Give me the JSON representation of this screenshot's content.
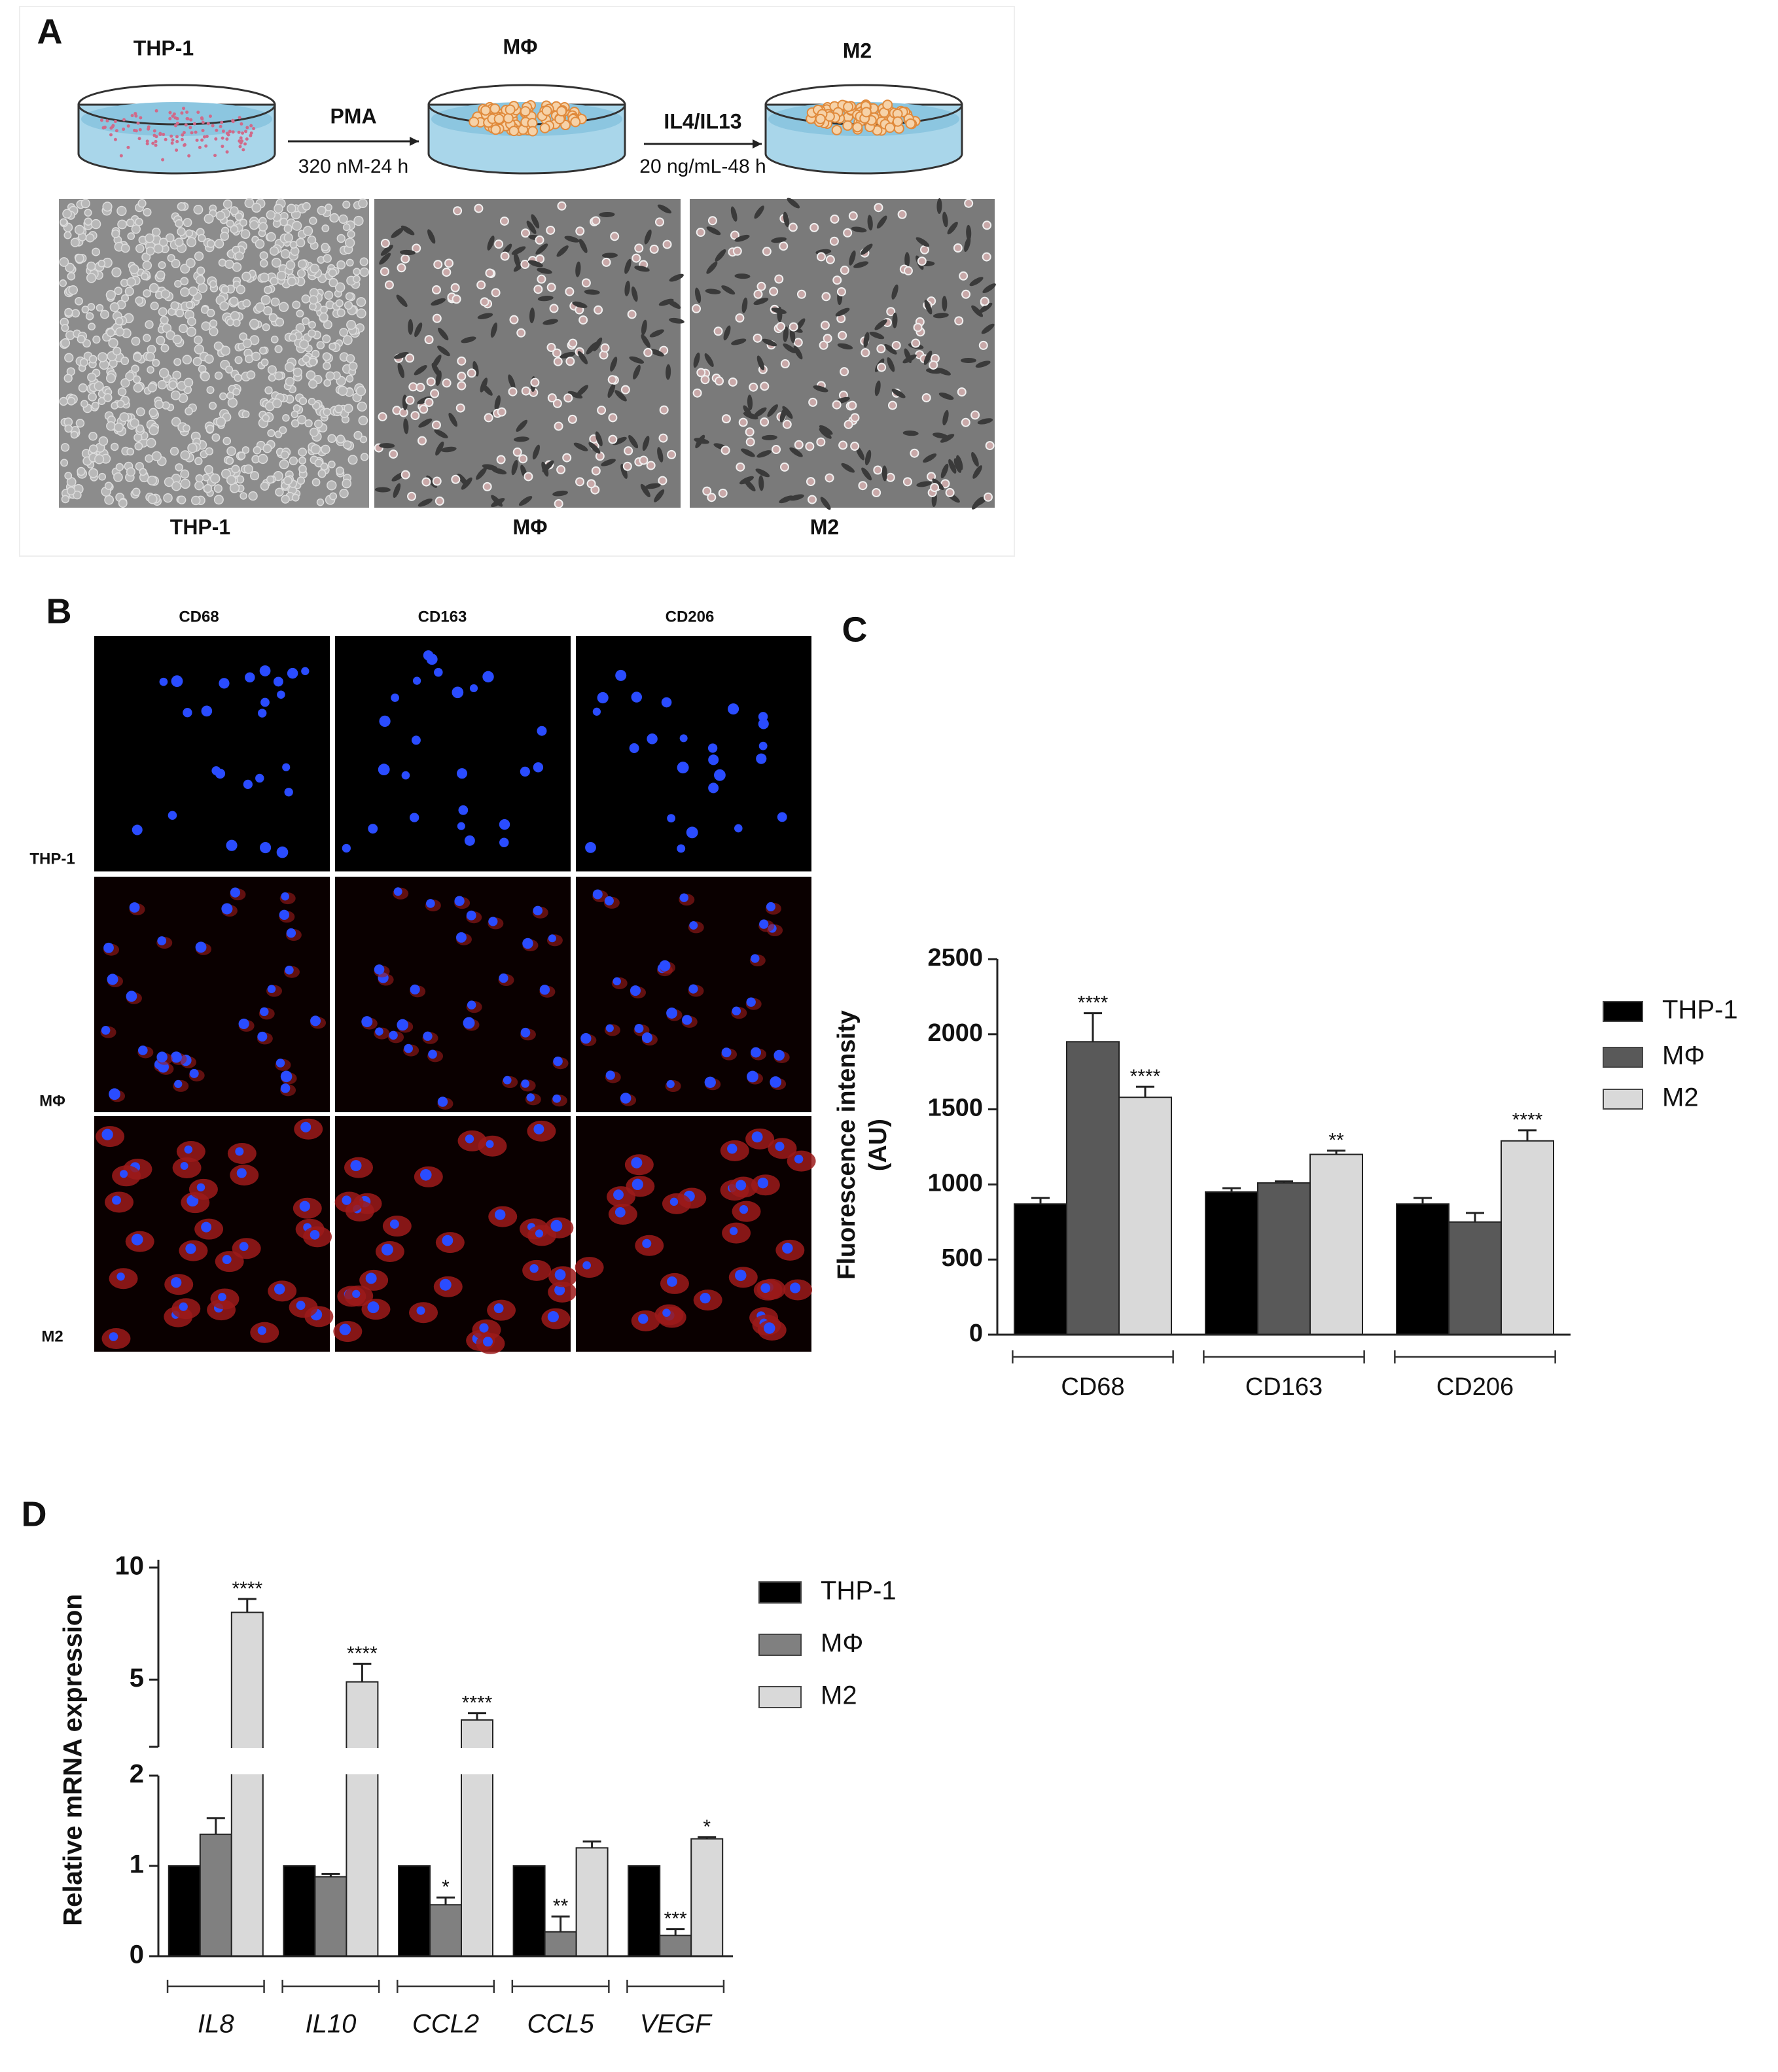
{
  "panel_a": {
    "label": "A",
    "dish_labels": [
      "THP-1",
      "MΦ",
      "M2"
    ],
    "steps": [
      {
        "agent": "PMA",
        "condition": "320 nM-24 h"
      },
      {
        "agent": "IL4/IL13",
        "condition": "20 ng/mL-48  h"
      }
    ],
    "image_labels": [
      "THP-1",
      "MΦ",
      "M2"
    ]
  },
  "panel_b": {
    "label": "B",
    "columns": [
      "CD68",
      "CD163",
      "CD206"
    ],
    "rows": [
      "THP-1",
      "MΦ",
      "M2"
    ]
  },
  "chart_data": [
    {
      "type": "bar",
      "panel_label": "C",
      "categories": [
        "CD68",
        "CD163",
        "CD206"
      ],
      "series": [
        {
          "name": "THP-1",
          "color": "#000000",
          "values": [
            870,
            950,
            870
          ],
          "errors": [
            40,
            25,
            40
          ],
          "significance": [
            null,
            null,
            null
          ]
        },
        {
          "name": "MΦ",
          "color": "#595959",
          "values": [
            1950,
            1010,
            750
          ],
          "errors": [
            190,
            10,
            60
          ],
          "significance": [
            "****",
            null,
            null
          ]
        },
        {
          "name": "M2",
          "color": "#d9d9d9",
          "values": [
            1580,
            1200,
            1290
          ],
          "errors": [
            70,
            25,
            70
          ],
          "significance": [
            "****",
            "**",
            "****"
          ]
        }
      ],
      "ylim": [
        0,
        2500
      ],
      "yticks": [
        0,
        500,
        1000,
        1500,
        2000,
        2500
      ],
      "ylabel": [
        "Fluorescence intensity",
        "(AU)"
      ],
      "legend": "right"
    },
    {
      "type": "bar",
      "panel_label": "D",
      "categories": [
        "IL8",
        "IL10",
        "CCL2",
        "CCL5",
        "VEGF"
      ],
      "category_style": "italic",
      "series": [
        {
          "name": "THP-1",
          "color": "#000000",
          "values": [
            1,
            1,
            1,
            1,
            1
          ]
        },
        {
          "name": "MΦ",
          "color": "#808080",
          "values": [
            1.35,
            0.88,
            0.57,
            0.27,
            0.23
          ],
          "errors": [
            0.18,
            0.03,
            0.08,
            0.17,
            0.07
          ],
          "significance": [
            null,
            null,
            "*",
            "**",
            "***"
          ]
        },
        {
          "name": "M2",
          "color": "#d9d9d9",
          "values": [
            8.0,
            4.9,
            3.2,
            1.2,
            1.3
          ],
          "errors": [
            0.6,
            0.8,
            0.3,
            0.07,
            0.02
          ],
          "significance": [
            "****",
            "****",
            "****",
            null,
            "*"
          ]
        }
      ],
      "ylim": [
        0,
        10
      ],
      "yticks": [
        0,
        1,
        2,
        5,
        10
      ],
      "axis_break": 2,
      "ylabel": "Relative mRNA expression",
      "legend": "right"
    }
  ]
}
